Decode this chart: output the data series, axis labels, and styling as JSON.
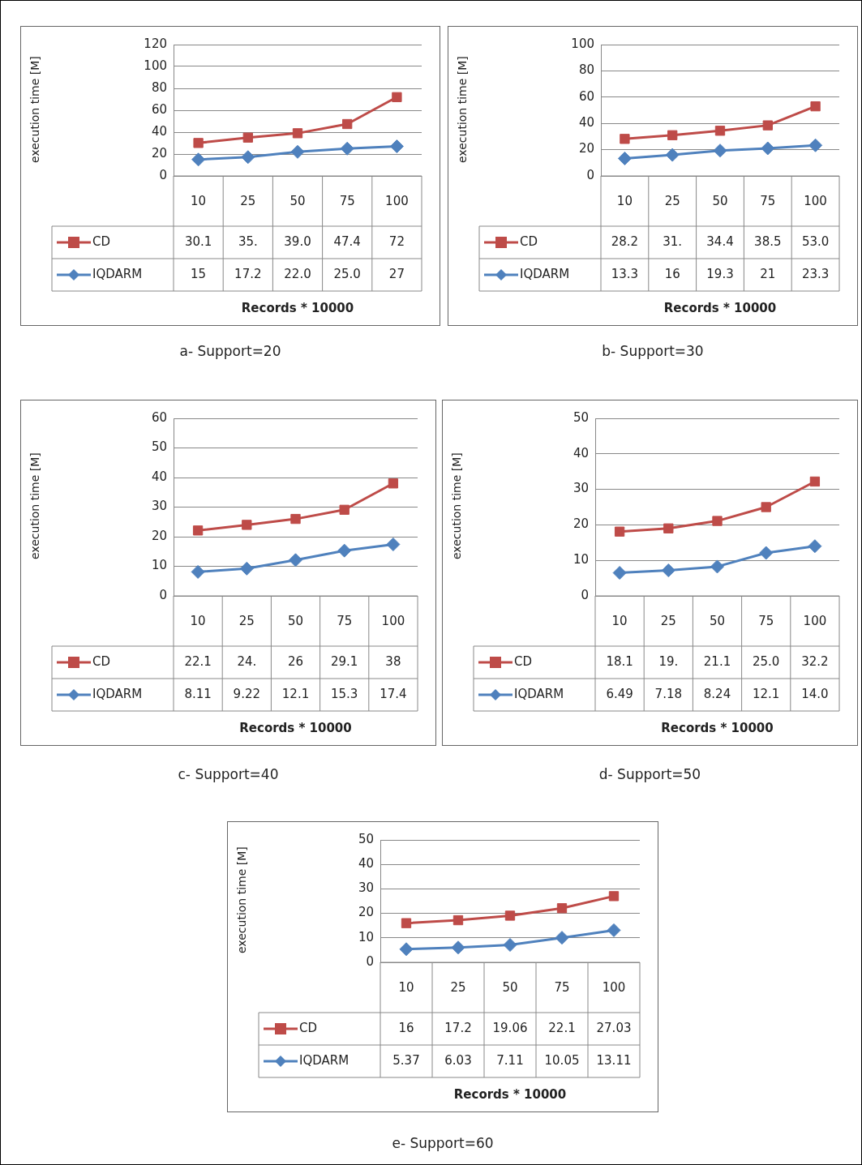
{
  "chart_data": [
    {
      "type": "line",
      "categories": [
        "10",
        "25",
        "50",
        "75",
        "100"
      ],
      "xlabel": "Records * 10000",
      "ylabel": "execution time [M]",
      "ylim": [
        0,
        120
      ],
      "yticks": [
        0,
        20,
        40,
        60,
        80,
        100,
        120
      ],
      "grid": "y",
      "legend": "bottom left",
      "annotations": [
        "a- Support=20"
      ],
      "series": [
        {
          "name": "CD",
          "color": "#be4b48",
          "marker": "square",
          "values": [
            30.1,
            35,
            39.0,
            47.4,
            72
          ],
          "value_labels": [
            "30.1",
            "35.",
            "39.0",
            "47.4",
            "72"
          ]
        },
        {
          "name": "IQDARM",
          "color": "#4f81bd",
          "marker": "diamond",
          "values": [
            15,
            17.2,
            22.0,
            25.0,
            27
          ],
          "value_labels": [
            "15",
            "17.2",
            "22.0",
            "25.0",
            "27"
          ]
        }
      ]
    },
    {
      "type": "line",
      "categories": [
        "10",
        "25",
        "50",
        "75",
        "100"
      ],
      "xlabel": "Records * 10000",
      "ylabel": "execution time [M]",
      "ylim": [
        0,
        100
      ],
      "yticks": [
        0,
        20,
        40,
        60,
        80,
        100
      ],
      "grid": "y",
      "legend": "bottom left",
      "annotations": [
        "b- Support=30"
      ],
      "series": [
        {
          "name": "CD",
          "color": "#be4b48",
          "marker": "square",
          "values": [
            28.2,
            31,
            34.4,
            38.5,
            53.0
          ],
          "value_labels": [
            "28.2",
            "31.",
            "34.4",
            "38.5",
            "53.0"
          ]
        },
        {
          "name": "IQDARM",
          "color": "#4f81bd",
          "marker": "diamond",
          "values": [
            13.3,
            16,
            19.3,
            21,
            23.3
          ],
          "value_labels": [
            "13.3",
            "16",
            "19.3",
            "21",
            "23.3"
          ]
        }
      ]
    },
    {
      "type": "line",
      "categories": [
        "10",
        "25",
        "50",
        "75",
        "100"
      ],
      "xlabel": "Records * 10000",
      "ylabel": "execution time [M]",
      "ylim": [
        0,
        60
      ],
      "yticks": [
        0,
        10,
        20,
        30,
        40,
        50,
        60
      ],
      "grid": "y",
      "legend": "bottom left",
      "annotations": [
        "c- Support=40"
      ],
      "series": [
        {
          "name": "CD",
          "color": "#be4b48",
          "marker": "square",
          "values": [
            22.1,
            24,
            26,
            29.1,
            38
          ],
          "value_labels": [
            "22.1",
            "24.",
            "26",
            "29.1",
            "38"
          ]
        },
        {
          "name": "IQDARM",
          "color": "#4f81bd",
          "marker": "diamond",
          "values": [
            8.11,
            9.22,
            12.1,
            15.3,
            17.4
          ],
          "value_labels": [
            "8.11",
            "9.22",
            "12.1",
            "15.3",
            "17.4"
          ]
        }
      ]
    },
    {
      "type": "line",
      "categories": [
        "10",
        "25",
        "50",
        "75",
        "100"
      ],
      "xlabel": "Records * 10000",
      "ylabel": "execution time [M]",
      "ylim": [
        0,
        50
      ],
      "yticks": [
        0,
        10,
        20,
        30,
        40,
        50
      ],
      "grid": "y",
      "legend": "bottom left",
      "annotations": [
        "d- Support=50"
      ],
      "series": [
        {
          "name": "CD",
          "color": "#be4b48",
          "marker": "square",
          "values": [
            18.1,
            19,
            21.1,
            25.0,
            32.2
          ],
          "value_labels": [
            "18.1",
            "19.",
            "21.1",
            "25.0",
            "32.2"
          ]
        },
        {
          "name": "IQDARM",
          "color": "#4f81bd",
          "marker": "diamond",
          "values": [
            6.49,
            7.18,
            8.24,
            12.1,
            14.0
          ],
          "value_labels": [
            "6.49",
            "7.18",
            "8.24",
            "12.1",
            "14.0"
          ]
        }
      ]
    },
    {
      "type": "line",
      "categories": [
        "10",
        "25",
        "50",
        "75",
        "100"
      ],
      "xlabel": "Records * 10000",
      "ylabel": "execution time [M]",
      "ylim": [
        0,
        50
      ],
      "yticks": [
        0,
        10,
        20,
        30,
        40,
        50
      ],
      "grid": "y",
      "legend": "bottom left",
      "annotations": [
        "e- Support=60"
      ],
      "series": [
        {
          "name": "CD",
          "color": "#be4b48",
          "marker": "square",
          "values": [
            16,
            17.2,
            19.06,
            22.1,
            27.03
          ],
          "value_labels": [
            "16",
            "17.2",
            "19.06",
            "22.1",
            "27.03"
          ]
        },
        {
          "name": "IQDARM",
          "color": "#4f81bd",
          "marker": "diamond",
          "values": [
            5.37,
            6.03,
            7.11,
            10.05,
            13.11
          ],
          "value_labels": [
            "5.37",
            "6.03",
            "7.11",
            "10.05",
            "13.11"
          ]
        }
      ]
    }
  ]
}
